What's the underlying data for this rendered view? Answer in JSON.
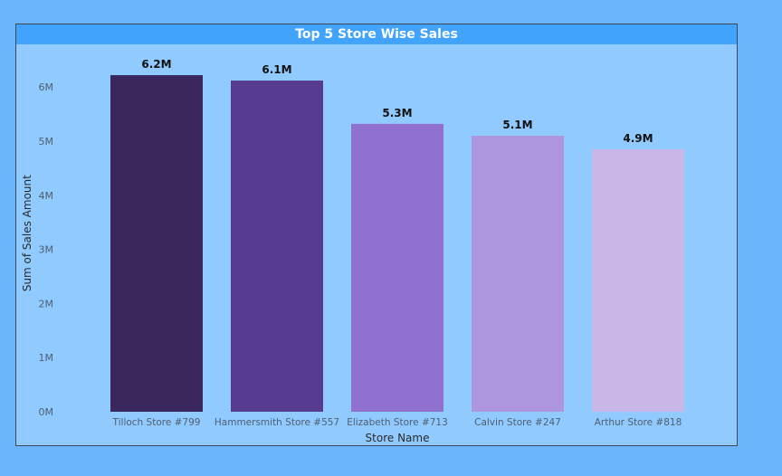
{
  "chart_data": {
    "type": "bar",
    "title": "Top 5 Store Wise Sales",
    "xlabel": "Store Name",
    "ylabel": "Sum of Sales Amount",
    "categories": [
      "Tilloch Store #799",
      "Hammersmith Store #557",
      "Elizabeth Store #713",
      "Calvin Store #247",
      "Arthur Store #818"
    ],
    "values": [
      6.22,
      6.12,
      5.32,
      5.1,
      4.85
    ],
    "data_labels": [
      "6.2M",
      "6.1M",
      "5.3M",
      "5.1M",
      "4.9M"
    ],
    "yticks": [
      0,
      1,
      2,
      3,
      4,
      5,
      6
    ],
    "ytick_labels": [
      "0M",
      "1M",
      "2M",
      "3M",
      "4M",
      "5M",
      "6M"
    ],
    "ylim": [
      0,
      6.6
    ],
    "bar_colors": [
      "#3a275e",
      "#563b91",
      "#9071cf",
      "#ad96de",
      "#c9b7e7"
    ],
    "grid": false,
    "legend": "none"
  }
}
